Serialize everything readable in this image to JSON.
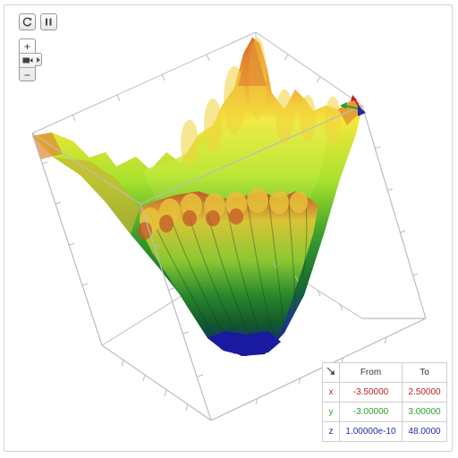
{
  "controls": {
    "reset_icon": "refresh-icon",
    "pause_icon": "pause-icon",
    "zoom_in_label": "+",
    "zoom_out_label": "−",
    "camera_icon": "camera-icon"
  },
  "range_table": {
    "corner_icon": "diagonal-arrow-icon",
    "headers": [
      "From",
      "To"
    ],
    "rows": [
      {
        "axis": "x",
        "from": "-3.50000",
        "to": "2.50000",
        "color": "#c02020"
      },
      {
        "axis": "y",
        "from": "-3.00000",
        "to": "3.00000",
        "color": "#2aa12a"
      },
      {
        "axis": "z",
        "from": "1.00000e-10",
        "to": "48.0000",
        "color": "#1f2aa8"
      }
    ]
  },
  "colors": {
    "low": "#1a1aa8",
    "mid_low": "#2e9e2e",
    "mid": "#9fe02a",
    "mid_high": "#f1e43a",
    "high": "#e0832e",
    "peak": "#c85a24",
    "box_line": "#b9b9b9"
  }
}
